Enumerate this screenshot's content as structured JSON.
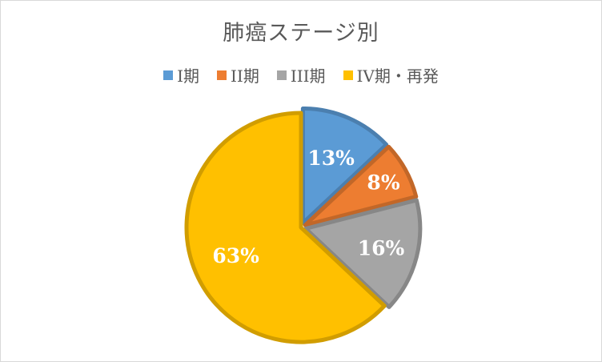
{
  "chart_data": {
    "type": "pie",
    "title": "肺癌ステージ別",
    "categories": [
      "I期",
      "II期",
      "III期",
      "IV期・再発"
    ],
    "values": [
      13,
      8,
      16,
      63
    ],
    "labels": [
      "13%",
      "8%",
      "16%",
      "63%"
    ],
    "colors": [
      "#5b9bd5",
      "#ed7d31",
      "#a5a5a5",
      "#ffc000"
    ],
    "legend_position": "top",
    "start_angle_deg": 0,
    "direction": "clockwise"
  }
}
